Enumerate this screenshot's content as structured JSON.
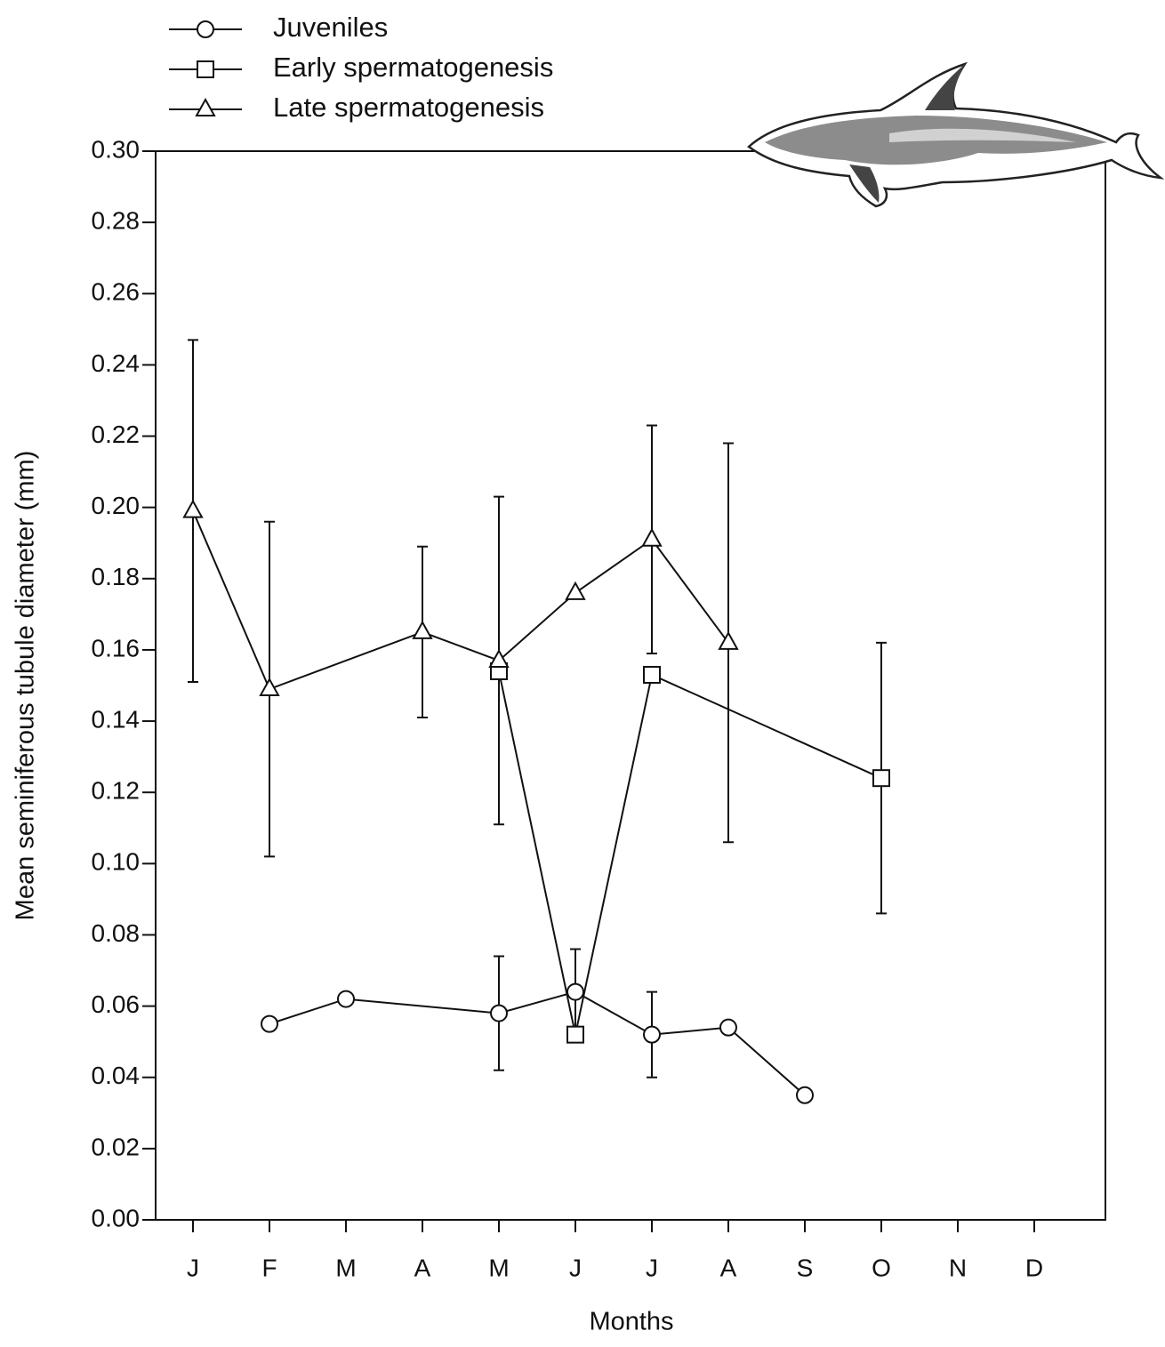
{
  "chart_data": {
    "type": "line",
    "x_label": "Months",
    "y_label": "Mean seminiferous tubule diameter (mm)",
    "categories": [
      "J",
      "F",
      "M",
      "A",
      "M",
      "J",
      "J",
      "A",
      "S",
      "O",
      "N",
      "D"
    ],
    "ylim": [
      0,
      0.3
    ],
    "yticks": [
      {
        "value": 0,
        "label": "0.00"
      },
      {
        "value": 0.02,
        "label": "0.02"
      },
      {
        "value": 0.04,
        "label": "0.04"
      },
      {
        "value": 0.06,
        "label": "0.06"
      },
      {
        "value": 0.08,
        "label": "0.08"
      },
      {
        "value": 0.1,
        "label": "0.10"
      },
      {
        "value": 0.12,
        "label": "0.12"
      },
      {
        "value": 0.14,
        "label": "0.14"
      },
      {
        "value": 0.16,
        "label": "0.16"
      },
      {
        "value": 0.18,
        "label": "0.18"
      },
      {
        "value": 0.2,
        "label": "0.20"
      },
      {
        "value": 0.22,
        "label": "0.22"
      },
      {
        "value": 0.24,
        "label": "0.24"
      },
      {
        "value": 0.26,
        "label": "0.26"
      },
      {
        "value": 0.28,
        "label": "0.28"
      },
      {
        "value": 0.3,
        "label": "0.30"
      }
    ],
    "grid": false,
    "series": [
      {
        "name": "Juveniles",
        "marker": "circle",
        "color": "#111111",
        "values": [
          null,
          0.055,
          0.062,
          null,
          0.058,
          0.064,
          0.052,
          0.054,
          0.035,
          null,
          null,
          null
        ],
        "errors": [
          null,
          null,
          null,
          null,
          0.016,
          0.012,
          0.012,
          null,
          null,
          null,
          null,
          null
        ]
      },
      {
        "name": "Early spermatogenesis",
        "marker": "square",
        "color": "#111111",
        "values": [
          null,
          null,
          null,
          null,
          0.154,
          0.052,
          0.153,
          null,
          null,
          0.124,
          null,
          null
        ],
        "errors": [
          null,
          null,
          null,
          null,
          null,
          null,
          null,
          null,
          null,
          0.038,
          null,
          null
        ]
      },
      {
        "name": "Late spermatogenesis",
        "marker": "triangle",
        "color": "#111111",
        "values": [
          0.199,
          0.149,
          null,
          0.165,
          0.157,
          0.176,
          0.191,
          0.162,
          null,
          null,
          null,
          null
        ],
        "errors": [
          0.048,
          0.047,
          null,
          0.024,
          0.046,
          null,
          0.032,
          0.056,
          null,
          null,
          null,
          null
        ]
      }
    ]
  }
}
